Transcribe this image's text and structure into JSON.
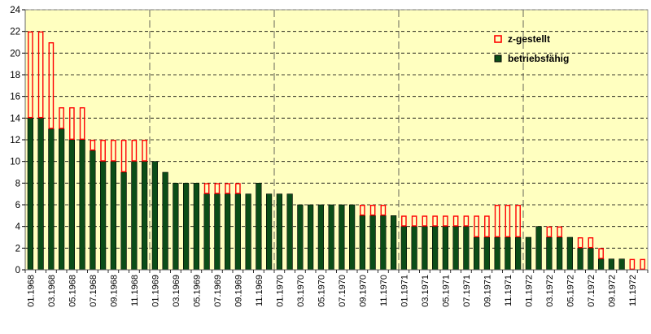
{
  "chart_data": {
    "type": "bar",
    "stacked": true,
    "title": "",
    "xlabel": "",
    "ylabel": "",
    "ylim": [
      0,
      24
    ],
    "y_ticks": [
      0,
      2,
      4,
      6,
      8,
      10,
      12,
      14,
      16,
      18,
      20,
      22,
      24
    ],
    "grid": "horizontal dashed lines, vertical dashed year separators",
    "legend_position": "top-right",
    "start_month": "01.1968",
    "end_month": "12.1972",
    "x_tick_labels": [
      "01.1968",
      "03.1968",
      "05.1968",
      "07.1968",
      "09.1968",
      "11.1968",
      "01.1969",
      "03.1969",
      "05.1969",
      "07.1969",
      "09.1969",
      "11.1969",
      "01.1970",
      "03.1970",
      "05.1970",
      "07.1970",
      "09.1970",
      "11.1970",
      "01.1971",
      "03.1971",
      "05.1971",
      "07.1971",
      "09.1971",
      "11.1971",
      "01.1972",
      "03.1972",
      "05.1972",
      "07.1972",
      "09.1972",
      "11.1972"
    ],
    "series": [
      {
        "name": "betriebsfähig",
        "color": "#0b4d17",
        "values": [
          14,
          14,
          13,
          13,
          12,
          12,
          11,
          10,
          10,
          9,
          10,
          10,
          10,
          9,
          8,
          8,
          8,
          7,
          7,
          7,
          7,
          7,
          8,
          7,
          7,
          7,
          6,
          6,
          6,
          6,
          6,
          6,
          5,
          5,
          5,
          5,
          4,
          4,
          4,
          4,
          4,
          4,
          4,
          3,
          3,
          3,
          3,
          3,
          3,
          4,
          3,
          3,
          3,
          2,
          2,
          1,
          1,
          1,
          0,
          0
        ]
      },
      {
        "name": "z-gestellt",
        "color": "#ff0000",
        "values": [
          8,
          8,
          8,
          2,
          3,
          3,
          1,
          2,
          2,
          3,
          2,
          2,
          0,
          0,
          0,
          0,
          0,
          1,
          1,
          1,
          1,
          0,
          0,
          0,
          0,
          0,
          0,
          0,
          0,
          0,
          0,
          0,
          1,
          1,
          1,
          0,
          1,
          1,
          1,
          1,
          1,
          1,
          1,
          2,
          2,
          3,
          3,
          3,
          0,
          0,
          1,
          1,
          0,
          1,
          1,
          1,
          0,
          0,
          1,
          1
        ]
      }
    ]
  },
  "colors": {
    "plot_background": "#ffffc0",
    "grid": "#000000",
    "axis": "#000000",
    "bar_outline_red": "#ff0000"
  }
}
